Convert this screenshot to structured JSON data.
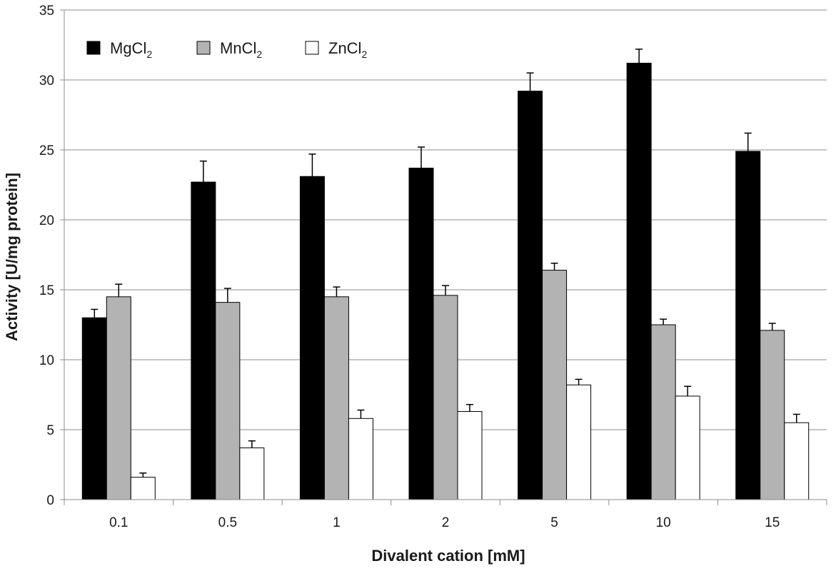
{
  "chart_data": {
    "type": "bar",
    "title": "",
    "xlabel": "Divalent cation [mM]",
    "ylabel": "Activity [U/mg protein]",
    "ylim": [
      0,
      35
    ],
    "yticks": [
      0,
      5,
      10,
      15,
      20,
      25,
      30,
      35
    ],
    "grid": true,
    "legend_position": "top-left",
    "categories": [
      "0.1",
      "0.5",
      "1",
      "2",
      "5",
      "10",
      "15"
    ],
    "series": [
      {
        "name": "MgCl",
        "name_subscript": "2",
        "color": "#000000",
        "values": [
          13.0,
          22.7,
          23.1,
          23.7,
          29.2,
          31.2,
          24.9
        ],
        "errors": [
          0.6,
          1.5,
          1.6,
          1.5,
          1.3,
          1.0,
          1.3
        ]
      },
      {
        "name": "MnCl",
        "name_subscript": "2",
        "color": "#b3b3b3",
        "values": [
          14.5,
          14.1,
          14.5,
          14.6,
          16.4,
          12.5,
          12.1
        ],
        "errors": [
          0.9,
          1.0,
          0.7,
          0.7,
          0.5,
          0.4,
          0.5
        ]
      },
      {
        "name": "ZnCl",
        "name_subscript": "2",
        "color": "#ffffff",
        "values": [
          1.6,
          3.7,
          5.8,
          6.3,
          8.2,
          7.4,
          5.5
        ],
        "errors": [
          0.3,
          0.5,
          0.6,
          0.5,
          0.4,
          0.7,
          0.6
        ]
      }
    ]
  }
}
